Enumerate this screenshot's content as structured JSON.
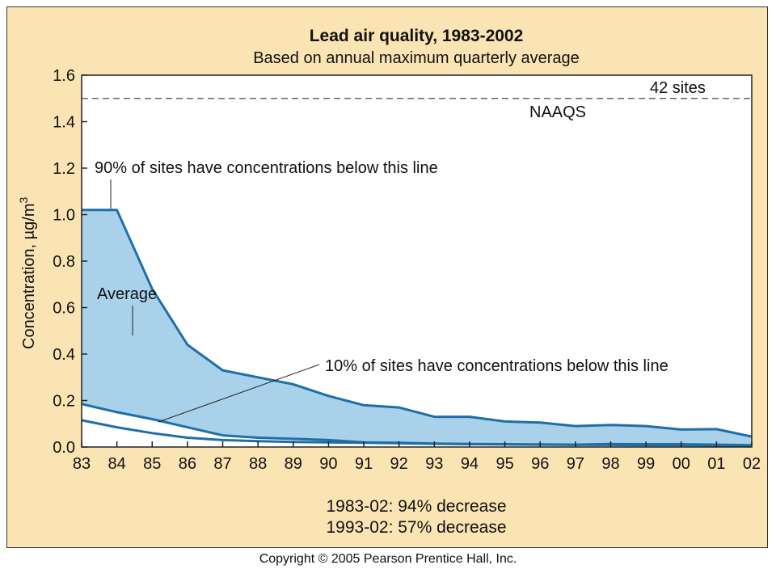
{
  "chart_data": {
    "type": "area",
    "title": "Lead air quality, 1983-2002",
    "subtitle": "Based on annual maximum quarterly average",
    "ylabel_main": "Concentration, µg/m",
    "ylabel_sup": "3",
    "x": [
      "83",
      "84",
      "85",
      "86",
      "87",
      "88",
      "89",
      "90",
      "91",
      "92",
      "93",
      "94",
      "95",
      "96",
      "97",
      "98",
      "99",
      "00",
      "01",
      "02"
    ],
    "ylim": [
      0,
      1.6
    ],
    "yticks": [
      "0.0",
      "0.2",
      "0.4",
      "0.6",
      "0.8",
      "1.0",
      "1.2",
      "1.4",
      "1.6"
    ],
    "series": [
      {
        "name": "90% of sites have concentrations below this line",
        "values": [
          1.02,
          1.02,
          0.68,
          0.44,
          0.33,
          0.3,
          0.27,
          0.22,
          0.18,
          0.17,
          0.13,
          0.13,
          0.11,
          0.105,
          0.09,
          0.095,
          0.09,
          0.075,
          0.077,
          0.045
        ]
      },
      {
        "name": "Average",
        "values": [
          0.115,
          0.085,
          0.06,
          0.04,
          0.03,
          0.025,
          0.022,
          0.02,
          0.018,
          0.016,
          0.014,
          0.012,
          0.011,
          0.01,
          0.009,
          0.009,
          0.008,
          0.008,
          0.007,
          0.007
        ]
      },
      {
        "name": "10% of sites have concentrations below this line",
        "values": [
          0.185,
          0.15,
          0.12,
          0.085,
          0.05,
          0.04,
          0.035,
          0.03,
          0.02,
          0.018,
          0.015,
          0.013,
          0.012,
          0.011,
          0.01,
          0.013,
          0.012,
          0.012,
          0.01,
          0.008
        ]
      }
    ],
    "reference_line": {
      "value": 1.5,
      "label_above": "42 sites",
      "label_below": "NAAQS"
    },
    "annotations": {
      "p90": "90% of sites have concentrations below this line",
      "avg": "Average",
      "p10": "10% of sites have concentrations below this line"
    },
    "notes": [
      "1983-02: 94% decrease",
      "1993-02: 57% decrease"
    ],
    "colors": {
      "band_fill": "#a9d1ea",
      "line": "#1e6fa8",
      "panel": "#fbe4b4",
      "naaqs": "#666666"
    }
  },
  "copyright": "Copyright © 2005 Pearson Prentice Hall, Inc."
}
